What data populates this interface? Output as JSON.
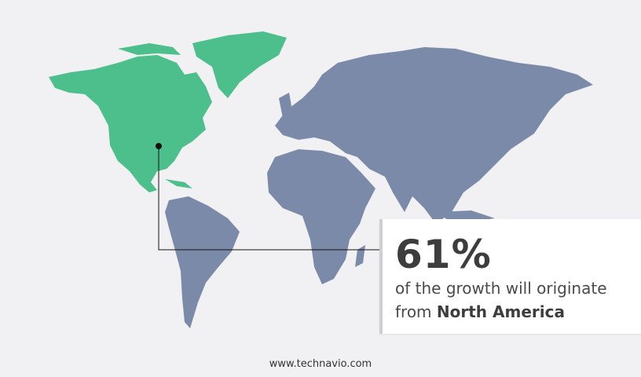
{
  "colors": {
    "highlight": "#4dbf8c",
    "other": "#7a8aa8",
    "background": "#f1f1f3"
  },
  "highlighted_region": "North America",
  "callout": {
    "percent": "61%",
    "text_line1": "of the growth will originate",
    "text_prefix": "from ",
    "region": "North America"
  },
  "footer": {
    "url": "www.technavio.com"
  }
}
